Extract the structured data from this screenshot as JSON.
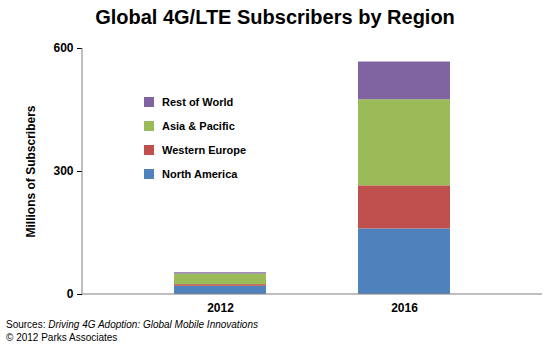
{
  "chart_data": {
    "type": "bar",
    "title": "Global 4G/LTE Subscribers by Region",
    "y_label": "Millions of Subscribers",
    "categories": [
      "2012",
      "2016"
    ],
    "series": [
      {
        "name": "North America",
        "color": "#4f81bd",
        "values": [
          20,
          160
        ]
      },
      {
        "name": "Western Europe",
        "color": "#c0504d",
        "values": [
          4,
          105
        ]
      },
      {
        "name": "Asia & Pacific",
        "color": "#9bbb59",
        "values": [
          26,
          210
        ]
      },
      {
        "name": "Rest of World",
        "color": "#8064a2",
        "values": [
          3,
          92
        ]
      }
    ],
    "ylim": [
      0,
      600
    ],
    "yticks": [
      0,
      300,
      600
    ],
    "stacked": true,
    "grid": false,
    "legend": "upper left",
    "annotations": [
      "Sources: Driving 4G Adoption: Global Mobile Innovations",
      "© 2012 Parks Associates"
    ]
  }
}
